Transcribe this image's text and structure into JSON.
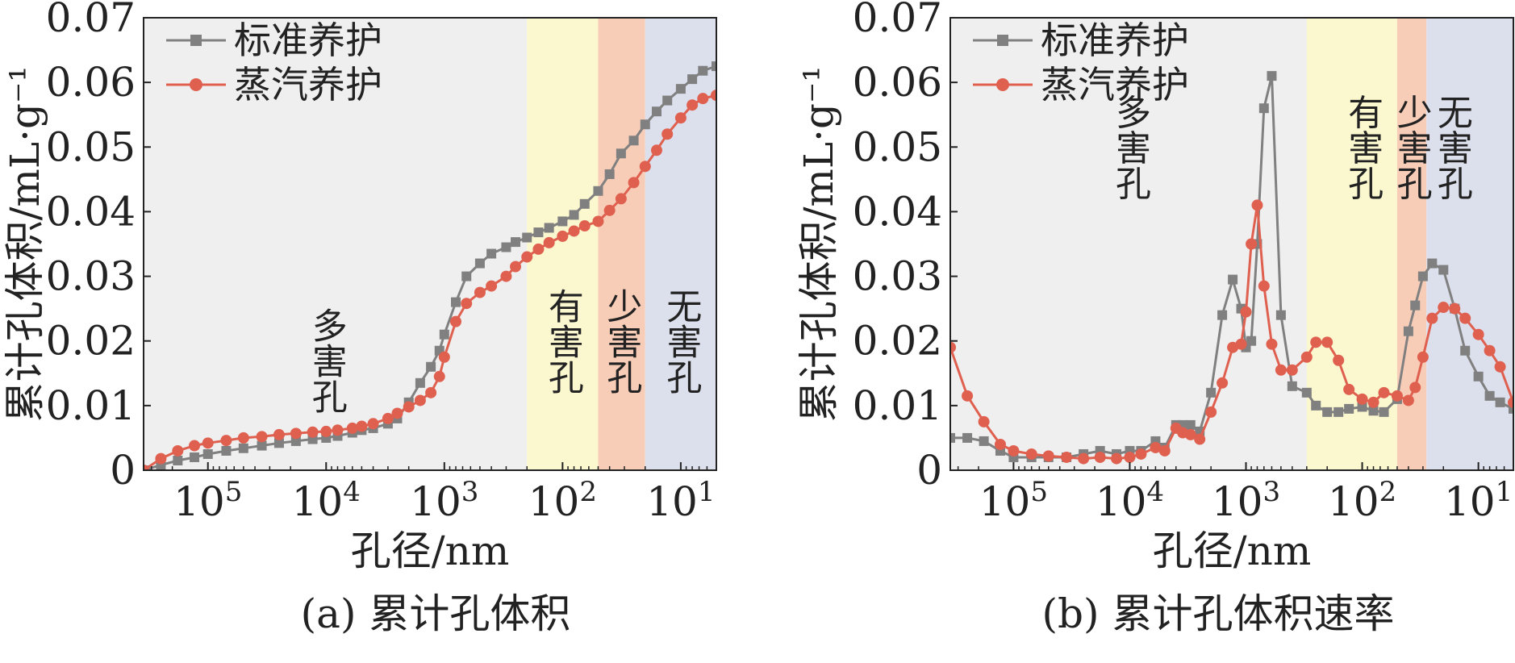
{
  "figure": {
    "panels": [
      {
        "caption": "(a) 累计孔体积"
      },
      {
        "caption": "(b) 累计孔体积速率"
      }
    ]
  },
  "chart_data": [
    {
      "type": "line",
      "caption": "(a) 累计孔体积",
      "xlabel": "孔径/nm",
      "ylabel": "累计孔体积/mL·g⁻¹",
      "x_scale": "log",
      "x_reversed": true,
      "xlim": [
        350000,
        5
      ],
      "ylim": [
        0,
        0.07
      ],
      "xticks": [
        {
          "value": 100000,
          "label": "10⁵"
        },
        {
          "value": 10000,
          "label": "10⁴"
        },
        {
          "value": 1000,
          "label": "10³"
        },
        {
          "value": 100,
          "label": "10²"
        },
        {
          "value": 10,
          "label": "10¹"
        }
      ],
      "yticks": [
        {
          "value": 0,
          "label": "0"
        },
        {
          "value": 0.01,
          "label": "0.01"
        },
        {
          "value": 0.02,
          "label": "0.02"
        },
        {
          "value": 0.03,
          "label": "0.03"
        },
        {
          "value": 0.04,
          "label": "0.04"
        },
        {
          "value": 0.05,
          "label": "0.05"
        },
        {
          "value": 0.06,
          "label": "0.06"
        },
        {
          "value": 0.07,
          "label": "0.07"
        }
      ],
      "legend_position": "top-left",
      "regions": [
        {
          "label": "多害孔",
          "from": 350000,
          "to": 200,
          "color": "#efefef",
          "label_x": 10000,
          "label_y": 0.017
        },
        {
          "label": "有害孔",
          "from": 200,
          "to": 50,
          "color": "#fbf7cf",
          "label_x": 100,
          "label_y": 0.02
        },
        {
          "label": "少害孔",
          "from": 50,
          "to": 20,
          "color": "#f8cdb8",
          "label_x": 32,
          "label_y": 0.02
        },
        {
          "label": "无害孔",
          "from": 20,
          "to": 5,
          "color": "#dcdfec",
          "label_x": 10,
          "label_y": 0.02
        }
      ],
      "series": [
        {
          "name": "标准养护",
          "color": "#808080",
          "marker": "square",
          "x": [
            350000,
            250000,
            180000,
            130000,
            100000,
            70000,
            50000,
            35000,
            25000,
            18000,
            13000,
            10000,
            8000,
            6000,
            5000,
            4000,
            3000,
            2500,
            2000,
            1600,
            1300,
            1100,
            1000,
            800,
            650,
            500,
            400,
            300,
            250,
            200,
            160,
            130,
            100,
            80,
            65,
            50,
            40,
            32,
            25,
            20,
            16,
            13,
            10,
            8,
            6.5,
            5
          ],
          "values": [
            0.0,
            0.0008,
            0.0015,
            0.002,
            0.0025,
            0.003,
            0.0034,
            0.0038,
            0.0042,
            0.0045,
            0.0048,
            0.005,
            0.0053,
            0.0058,
            0.0062,
            0.0065,
            0.0072,
            0.008,
            0.0105,
            0.0135,
            0.016,
            0.0185,
            0.021,
            0.026,
            0.03,
            0.032,
            0.0335,
            0.0345,
            0.0353,
            0.036,
            0.0368,
            0.0375,
            0.0385,
            0.0395,
            0.0412,
            0.0432,
            0.0458,
            0.049,
            0.051,
            0.0535,
            0.0555,
            0.0572,
            0.059,
            0.0605,
            0.0618,
            0.0625
          ]
        },
        {
          "name": "蒸汽养护",
          "color": "#e06050",
          "marker": "circle",
          "x": [
            350000,
            250000,
            180000,
            130000,
            100000,
            70000,
            50000,
            35000,
            25000,
            18000,
            13000,
            10000,
            8000,
            6000,
            5000,
            4000,
            3000,
            2500,
            2000,
            1600,
            1300,
            1100,
            1000,
            800,
            650,
            500,
            400,
            300,
            250,
            200,
            160,
            130,
            100,
            80,
            65,
            50,
            40,
            32,
            25,
            20,
            16,
            13,
            10,
            8,
            6.5,
            5
          ],
          "values": [
            0.0,
            0.0018,
            0.003,
            0.0038,
            0.0042,
            0.0046,
            0.005,
            0.0052,
            0.0055,
            0.0057,
            0.0059,
            0.006,
            0.0062,
            0.0065,
            0.0068,
            0.0072,
            0.008,
            0.0088,
            0.0098,
            0.0108,
            0.012,
            0.0145,
            0.0175,
            0.023,
            0.0258,
            0.0275,
            0.0285,
            0.03,
            0.0315,
            0.033,
            0.0342,
            0.0352,
            0.0362,
            0.037,
            0.0378,
            0.0385,
            0.0402,
            0.042,
            0.0445,
            0.047,
            0.0495,
            0.052,
            0.0545,
            0.0565,
            0.0575,
            0.058
          ]
        }
      ]
    },
    {
      "type": "line",
      "caption": "(b) 累计孔体积速率",
      "xlabel": "孔径/nm",
      "ylabel": "累计孔体积/mL·g⁻¹",
      "x_scale": "log",
      "x_reversed": true,
      "xlim": [
        350000,
        5
      ],
      "ylim": [
        0,
        0.07
      ],
      "xticks": [
        {
          "value": 100000,
          "label": "10⁵"
        },
        {
          "value": 10000,
          "label": "10⁴"
        },
        {
          "value": 1000,
          "label": "10³"
        },
        {
          "value": 100,
          "label": "10²"
        },
        {
          "value": 10,
          "label": "10¹"
        }
      ],
      "yticks": [
        {
          "value": 0,
          "label": "0"
        },
        {
          "value": 0.01,
          "label": "0.01"
        },
        {
          "value": 0.02,
          "label": "0.02"
        },
        {
          "value": 0.03,
          "label": "0.03"
        },
        {
          "value": 0.04,
          "label": "0.04"
        },
        {
          "value": 0.05,
          "label": "0.05"
        },
        {
          "value": 0.06,
          "label": "0.06"
        },
        {
          "value": 0.07,
          "label": "0.07"
        }
      ],
      "legend_position": "top-left",
      "regions": [
        {
          "label": "多害孔",
          "from": 350000,
          "to": 300,
          "color": "#efefef",
          "label_x": 10000,
          "label_y": 0.05
        },
        {
          "label": "有害孔",
          "from": 300,
          "to": 50,
          "color": "#fbf7cf",
          "label_x": 100,
          "label_y": 0.05
        },
        {
          "label": "少害孔",
          "from": 50,
          "to": 28,
          "color": "#f8cdb8",
          "label_x": 38,
          "label_y": 0.05
        },
        {
          "label": "无害孔",
          "from": 28,
          "to": 5,
          "color": "#dcdfec",
          "label_x": 17,
          "label_y": 0.05
        }
      ],
      "series": [
        {
          "name": "标准养护",
          "color": "#808080",
          "marker": "square",
          "x": [
            350000,
            250000,
            180000,
            130000,
            100000,
            70000,
            50000,
            35000,
            25000,
            18000,
            13000,
            10000,
            8000,
            6000,
            5000,
            4000,
            3500,
            3000,
            2500,
            2000,
            1600,
            1300,
            1100,
            1000,
            900,
            800,
            700,
            600,
            500,
            400,
            300,
            250,
            200,
            160,
            130,
            100,
            80,
            65,
            50,
            40,
            35,
            30,
            25,
            20,
            16,
            13,
            10,
            8,
            6.5,
            5
          ],
          "values": [
            0.005,
            0.005,
            0.0045,
            0.003,
            0.002,
            0.002,
            0.002,
            0.002,
            0.0025,
            0.003,
            0.0025,
            0.003,
            0.003,
            0.0045,
            0.0035,
            0.007,
            0.007,
            0.007,
            0.006,
            0.012,
            0.024,
            0.0295,
            0.025,
            0.019,
            0.02,
            0.035,
            0.056,
            0.061,
            0.024,
            0.013,
            0.012,
            0.01,
            0.009,
            0.009,
            0.0095,
            0.0098,
            0.0092,
            0.009,
            0.011,
            0.0215,
            0.0255,
            0.03,
            0.032,
            0.031,
            0.025,
            0.0185,
            0.0145,
            0.0115,
            0.0105,
            0.0095
          ]
        },
        {
          "name": "蒸汽养护",
          "color": "#e06050",
          "marker": "circle",
          "x": [
            350000,
            250000,
            180000,
            130000,
            100000,
            70000,
            50000,
            35000,
            25000,
            18000,
            13000,
            10000,
            8000,
            6000,
            5000,
            4000,
            3500,
            3000,
            2500,
            2000,
            1600,
            1300,
            1100,
            1000,
            900,
            800,
            700,
            600,
            500,
            400,
            300,
            250,
            200,
            160,
            130,
            100,
            80,
            65,
            50,
            40,
            35,
            30,
            25,
            20,
            16,
            13,
            10,
            8,
            6.5,
            5
          ],
          "values": [
            0.019,
            0.0115,
            0.0075,
            0.004,
            0.003,
            0.0025,
            0.0022,
            0.002,
            0.0018,
            0.002,
            0.0018,
            0.002,
            0.0025,
            0.0035,
            0.003,
            0.0065,
            0.0058,
            0.0055,
            0.0048,
            0.009,
            0.0135,
            0.019,
            0.0195,
            0.0245,
            0.035,
            0.041,
            0.0285,
            0.0195,
            0.0155,
            0.0155,
            0.0175,
            0.0198,
            0.0198,
            0.017,
            0.0125,
            0.011,
            0.0105,
            0.012,
            0.0115,
            0.0108,
            0.0128,
            0.0175,
            0.0235,
            0.0252,
            0.025,
            0.0235,
            0.021,
            0.0185,
            0.016,
            0.0105
          ]
        }
      ]
    }
  ]
}
